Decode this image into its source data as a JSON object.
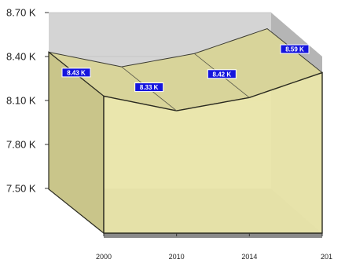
{
  "chart_data": {
    "type": "area",
    "title": "",
    "xlabel": "",
    "ylabel": "",
    "categories": [
      "2000",
      "2010",
      "2014",
      "201"
    ],
    "series": [
      {
        "values": [
          8430,
          8330,
          8420,
          8590
        ]
      }
    ],
    "data_labels": [
      "8.43 K",
      "8.33 K",
      "8.42 K",
      "8.59 K"
    ],
    "y_ticks": [
      "7.50 K",
      "7.80 K",
      "8.10 K",
      "8.40 K",
      "8.70 K"
    ],
    "ylim": [
      7500,
      8700
    ],
    "grid": true,
    "legend": "none",
    "style": "3d",
    "colors": {
      "area_front": "#ebe7a9",
      "area_top": "#d8d49a",
      "area_side": "#c9c58a",
      "label_bg": "#1515dd",
      "wall_back": "#d4d4d4",
      "wall_side": "#b5b5b5",
      "floor": "#9a9a9a"
    }
  }
}
